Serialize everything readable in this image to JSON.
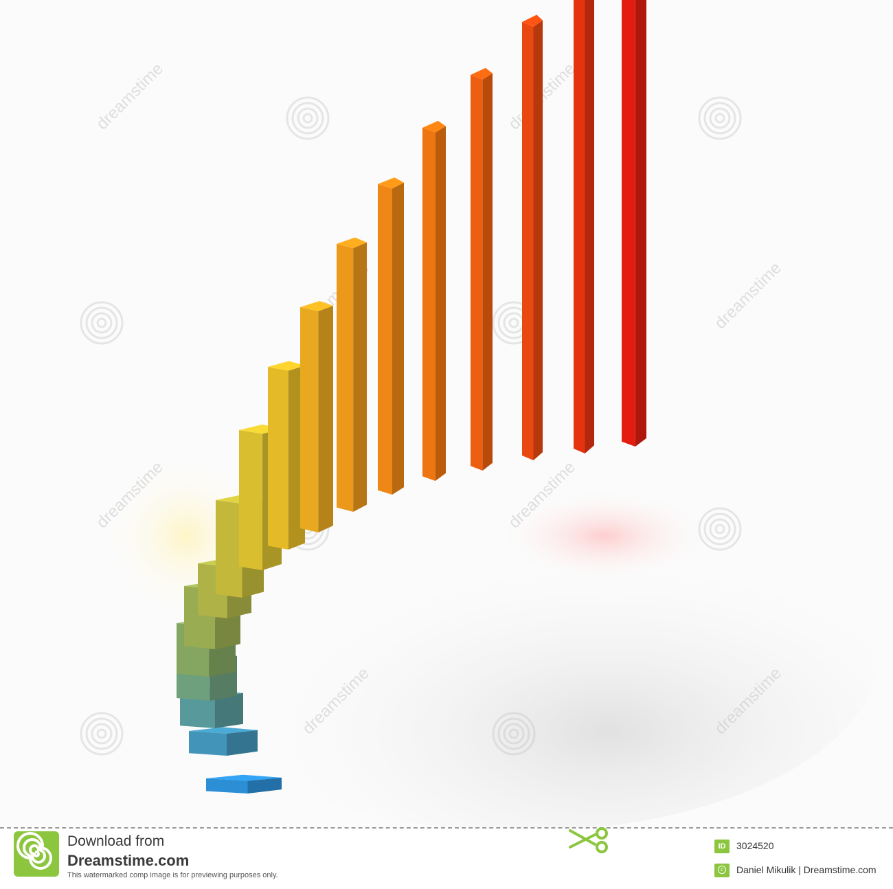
{
  "image": {
    "description_hidden": true
  },
  "footer": {
    "download_line1": "Download from",
    "download_line2": "Dreamstime.com",
    "note": "This watermarked comp image is for previewing purposes only.",
    "id_label": "ID",
    "id_value": "3024520",
    "credit": "Daniel Mikulik | Dreamstime.com"
  },
  "watermark": {
    "text": "dreamstime"
  },
  "colors": {
    "footer_green": "#8cc63f",
    "text_dark": "#333333",
    "bar_red": "#e21d10",
    "bar_orange": "#f07a10",
    "bar_yellow": "#e3c22a",
    "bar_green": "#8aa75a",
    "bar_blue": "#2c8fd6"
  },
  "chart_data": {
    "type": "bar",
    "values": [
      1,
      2,
      3,
      4,
      5,
      6,
      7,
      8,
      9,
      10,
      11,
      12,
      13,
      14,
      15,
      16,
      17,
      18
    ]
  }
}
